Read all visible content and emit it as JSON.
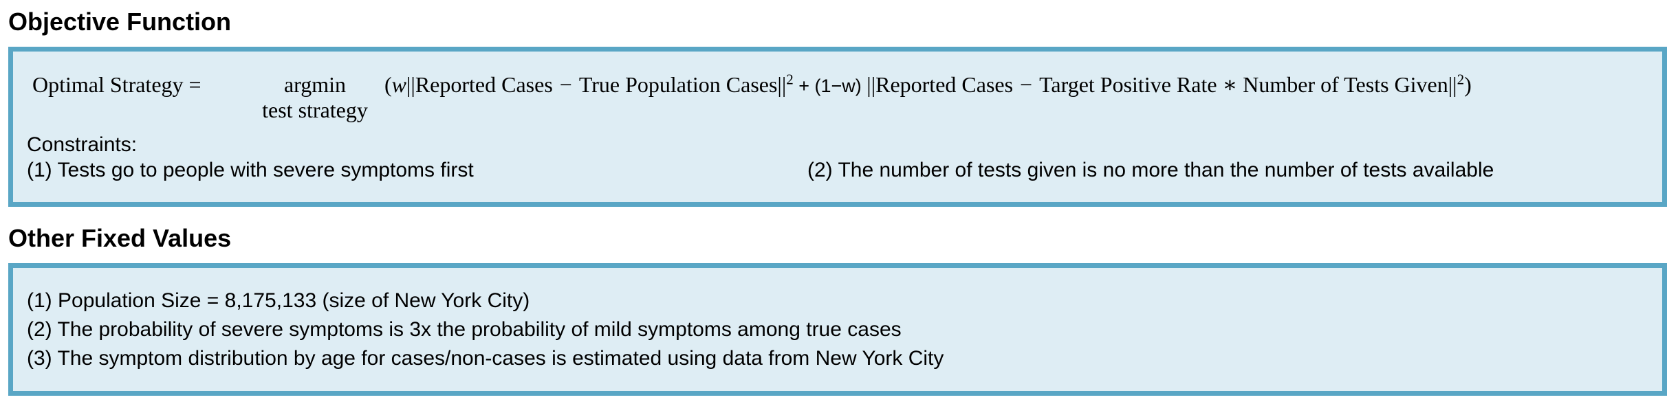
{
  "objective": {
    "heading": "Objective Function",
    "formula": {
      "lhs": "Optimal Strategy =",
      "operator": "argmin",
      "subscript": "test strategy",
      "open": "(",
      "weight": "w",
      "norm": "||",
      "reported": "Reported Cases",
      "minus": "−",
      "true_cases": "True Population Cases",
      "square": "2",
      "plus_term": " + (1−w) ",
      "target": "Target Positive Rate ∗ Number of Tests Given",
      "close": ")"
    },
    "constraints_label": "Constraints:",
    "constraints": [
      "(1) Tests go to people with severe symptoms first",
      "(2) The number of tests given is no more than the number of tests available"
    ]
  },
  "fixed_values": {
    "heading": "Other Fixed Values",
    "items": [
      "(1) Population Size = 8,175,133 (size of New York City)",
      "(2) The probability of severe symptoms is 3x the probability of mild symptoms among true cases",
      "(3) The symptom distribution by age for cases/non-cases is estimated using data from New York City"
    ]
  },
  "colors": {
    "box_fill": "#deedf4",
    "box_border": "#59a6c5"
  }
}
